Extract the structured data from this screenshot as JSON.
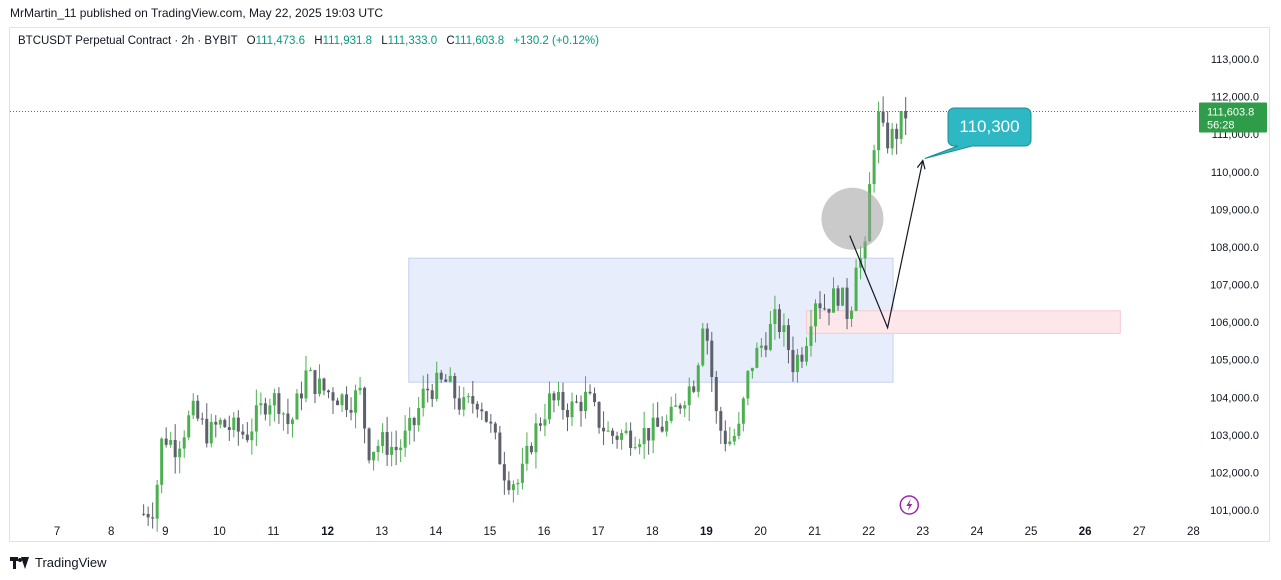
{
  "publisher_line": "MrMartin_11 published on TradingView.com, May 22, 2025 19:03 UTC",
  "header": {
    "symbol": "BTCUSDT Perpetual Contract · 2h · BYBIT",
    "open_label": "O",
    "open": "111,473.6",
    "high_label": "H",
    "high": "111,931.8",
    "low_label": "L",
    "low": "111,333.0",
    "close_label": "C",
    "close": "111,603.8",
    "change": "+130.2 (+0.12%)"
  },
  "price_tag": {
    "price": "111,603.8",
    "countdown": "56:28"
  },
  "callout": {
    "label": "110,300"
  },
  "footer": {
    "brand": "TradingView"
  },
  "colors": {
    "up": "#089981",
    "candle_up": "#4caf50",
    "candle_down": "#5d606b",
    "zone_blue": "#e8edfb",
    "zone_red": "#fde7ea",
    "callout": "#2eb8c4",
    "price_tag": "#2e9c49",
    "gray_circle": "#9e9e9e",
    "lightning": "#9c27b0"
  },
  "icons": {
    "brand_icon": "tradingview-logo-icon",
    "event_icon": "lightning-icon"
  },
  "chart_data": {
    "type": "candlestick",
    "y_axis": {
      "min": 100600,
      "max": 113600,
      "ticks": [
        113000,
        112000,
        111000,
        110000,
        109000,
        108000,
        107000,
        106000,
        105000,
        104000,
        103000,
        102000,
        101000
      ],
      "tick_labels": [
        "113,000.0",
        "112,000.0",
        "111,000.0",
        "110,000.0",
        "109,000.0",
        "108,000.0",
        "107,000.0",
        "106,000.0",
        "105,000.0",
        "104,000.0",
        "103,000.0",
        "102,000.0",
        "101,000.0"
      ]
    },
    "x_axis": {
      "labels": [
        "7",
        "8",
        "9",
        "10",
        "11",
        "12",
        "13",
        "14",
        "15",
        "16",
        "17",
        "18",
        "19",
        "20",
        "21",
        "22",
        "23",
        "24",
        "25",
        "26",
        "27",
        "28"
      ],
      "bold_labels": [
        "12",
        "19",
        "26"
      ],
      "day_min": 6.5,
      "day_max": 28.4
    },
    "last_price": 111603.8,
    "anchors": [
      [
        8.6,
        100900
      ],
      [
        8.8,
        101100
      ],
      [
        8.95,
        103000
      ],
      [
        9.2,
        102700
      ],
      [
        9.5,
        103600
      ],
      [
        9.8,
        103000
      ],
      [
        10.0,
        103300
      ],
      [
        10.5,
        103000
      ],
      [
        10.9,
        104000
      ],
      [
        11.1,
        103900
      ],
      [
        11.3,
        103200
      ],
      [
        11.6,
        104600
      ],
      [
        11.9,
        104200
      ],
      [
        12.1,
        104100
      ],
      [
        12.4,
        103900
      ],
      [
        12.6,
        104100
      ],
      [
        12.75,
        102600
      ],
      [
        13.0,
        102800
      ],
      [
        13.3,
        102600
      ],
      [
        13.6,
        103300
      ],
      [
        13.8,
        104200
      ],
      [
        14.2,
        104400
      ],
      [
        14.5,
        103700
      ],
      [
        14.8,
        104000
      ],
      [
        15.05,
        103000
      ],
      [
        15.3,
        101900
      ],
      [
        15.55,
        101700
      ],
      [
        15.8,
        103000
      ],
      [
        16.1,
        103900
      ],
      [
        16.5,
        103700
      ],
      [
        16.8,
        104000
      ],
      [
        17.0,
        103400
      ],
      [
        17.2,
        103000
      ],
      [
        17.6,
        103000
      ],
      [
        18.0,
        103100
      ],
      [
        18.3,
        103300
      ],
      [
        18.6,
        104100
      ],
      [
        18.8,
        104500
      ],
      [
        18.95,
        106300
      ],
      [
        19.05,
        105200
      ],
      [
        19.2,
        103300
      ],
      [
        19.4,
        102800
      ],
      [
        19.6,
        103100
      ],
      [
        19.8,
        104800
      ],
      [
        20.1,
        105600
      ],
      [
        20.3,
        106100
      ],
      [
        20.5,
        105400
      ],
      [
        20.6,
        104900
      ],
      [
        20.8,
        105300
      ],
      [
        21.0,
        106700
      ],
      [
        21.2,
        106400
      ],
      [
        21.45,
        106800
      ],
      [
        21.65,
        106100
      ],
      [
        21.8,
        108200
      ],
      [
        21.9,
        107100
      ],
      [
        22.0,
        109300
      ],
      [
        22.15,
        111600
      ],
      [
        22.3,
        110800
      ],
      [
        22.5,
        111000
      ],
      [
        22.7,
        111600
      ]
    ],
    "annotations": {
      "blue_zone": {
        "day_start": 13.5,
        "day_end": 22.45,
        "price_low": 104400,
        "price_high": 107700
      },
      "red_zone": {
        "day_start": 20.85,
        "day_end": 26.65,
        "price_low": 105700,
        "price_high": 106300
      },
      "gray_circle": {
        "day": 21.7,
        "price": 108750
      },
      "projection_path": [
        [
          21.65,
          108300
        ],
        [
          22.35,
          105850
        ],
        [
          23.0,
          110300
        ]
      ],
      "callout_price": 110300
    }
  }
}
